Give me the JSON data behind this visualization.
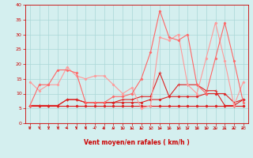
{
  "x": [
    0,
    1,
    2,
    3,
    4,
    5,
    6,
    7,
    8,
    9,
    10,
    11,
    12,
    13,
    14,
    15,
    16,
    17,
    18,
    19,
    20,
    21,
    22,
    23
  ],
  "lines": [
    {
      "y": [
        6,
        6,
        6,
        6,
        6,
        6,
        6,
        6,
        6,
        6,
        6,
        6,
        6,
        6,
        6,
        6,
        6,
        6,
        6,
        6,
        6,
        6,
        6,
        6
      ],
      "color": "#dd2222",
      "lw": 0.8,
      "marker": "D",
      "ms": 1.5
    },
    {
      "y": [
        6,
        6,
        6,
        6,
        6,
        6,
        6,
        6,
        6,
        6,
        6,
        6,
        6,
        6,
        6,
        6,
        6,
        6,
        6,
        6,
        6,
        6,
        6,
        6
      ],
      "color": "#dd2222",
      "lw": 0.8,
      "marker": "D",
      "ms": 1.5
    },
    {
      "y": [
        6,
        6,
        6,
        6,
        8,
        8,
        7,
        7,
        7,
        7,
        7,
        7,
        7,
        8,
        8,
        9,
        9,
        9,
        9,
        10,
        10,
        10,
        7,
        8
      ],
      "color": "#dd2222",
      "lw": 0.8,
      "marker": "D",
      "ms": 1.5
    },
    {
      "y": [
        6,
        6,
        6,
        6,
        8,
        8,
        7,
        7,
        7,
        7,
        8,
        8,
        9,
        9,
        17,
        9,
        13,
        13,
        13,
        11,
        11,
        6,
        6,
        8
      ],
      "color": "#dd2222",
      "lw": 0.8,
      "marker": "+",
      "ms": 3.0
    },
    {
      "y": [
        14,
        11,
        13,
        13,
        19,
        16,
        15,
        16,
        16,
        13,
        10,
        12,
        5,
        6,
        29,
        28,
        30,
        13,
        10,
        22,
        34,
        21,
        6,
        14
      ],
      "color": "#ff9999",
      "lw": 0.8,
      "marker": "D",
      "ms": 1.5
    },
    {
      "y": [
        6,
        13,
        13,
        18,
        18,
        17,
        7,
        7,
        7,
        9,
        9,
        10,
        15,
        24,
        38,
        29,
        28,
        30,
        13,
        10,
        22,
        34,
        21,
        7
      ],
      "color": "#ff6666",
      "lw": 0.8,
      "marker": "D",
      "ms": 1.5
    }
  ],
  "xlabel": "Vent moyen/en rafales ( km/h )",
  "xlim": [
    -0.5,
    23.5
  ],
  "ylim": [
    0,
    40
  ],
  "yticks": [
    0,
    5,
    10,
    15,
    20,
    25,
    30,
    35,
    40
  ],
  "xticks": [
    0,
    1,
    2,
    3,
    4,
    5,
    6,
    7,
    8,
    9,
    10,
    11,
    12,
    13,
    14,
    15,
    16,
    17,
    18,
    19,
    20,
    21,
    22,
    23
  ],
  "bg_color": "#d4efef",
  "grid_color": "#aad8d8",
  "tick_color": "#cc0000",
  "label_color": "#cc0000",
  "arrow_color": "#cc0000",
  "arrow_angles": [
    0,
    0,
    0,
    0,
    15,
    0,
    0,
    20,
    30,
    40,
    50,
    45,
    40,
    60,
    70,
    80,
    80,
    75,
    70,
    65,
    60,
    50,
    30,
    20
  ]
}
